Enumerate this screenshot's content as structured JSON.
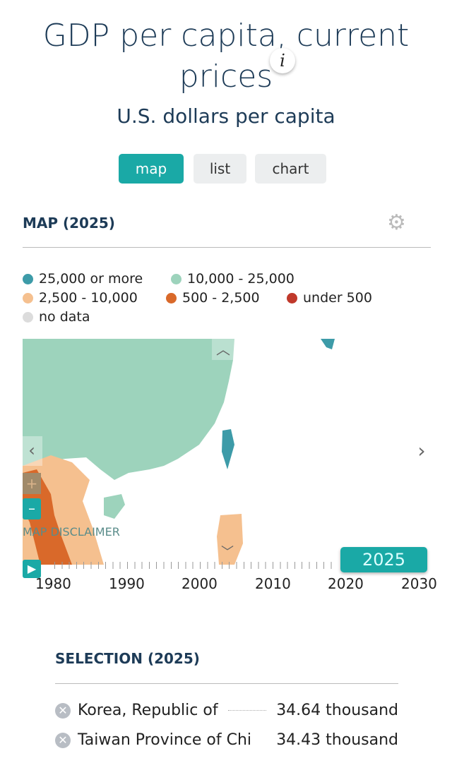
{
  "header": {
    "title": "GDP per capita, current prices",
    "subtitle": "U.S. dollars per capita",
    "info_label": "i"
  },
  "tabs": [
    {
      "label": "map",
      "active": true
    },
    {
      "label": "list",
      "active": false
    },
    {
      "label": "chart",
      "active": false
    }
  ],
  "map_section": {
    "title": "MAP (2025)",
    "disclaimer": "MAP DISCLAIMER",
    "legend": [
      {
        "label": "25,000 or more",
        "color": "#3d9ba8"
      },
      {
        "label": "10,000 - 25,000",
        "color": "#9dd3bc"
      },
      {
        "label": "2,500 - 10,000",
        "color": "#f5c08f"
      },
      {
        "label": "500 - 2,500",
        "color": "#d9692a"
      },
      {
        "label": "under 500",
        "color": "#c0392b"
      },
      {
        "label": "no data",
        "color": "#dcdcdc"
      }
    ]
  },
  "timeline": {
    "ticks": [
      "1980",
      "1990",
      "2000",
      "2010",
      "2020",
      "2030"
    ],
    "selected_year": "2025"
  },
  "selection": {
    "title": "SELECTION (2025)",
    "rows": [
      {
        "name": "Korea, Republic of",
        "value": "34.64 thousand"
      },
      {
        "name": "Taiwan Province of Chi",
        "value": "34.43 thousand"
      }
    ]
  }
}
